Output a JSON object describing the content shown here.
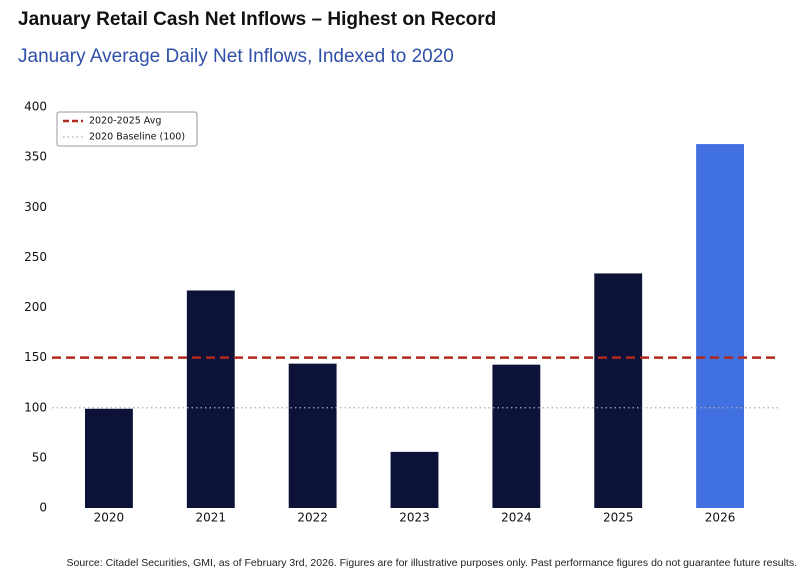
{
  "chart_data": {
    "type": "bar",
    "title": "January Retail Cash Net Inflows – Highest on Record",
    "subtitle": "January Average Daily Net Inflows, Indexed to 2020",
    "categories": [
      "2020",
      "2021",
      "2022",
      "2023",
      "2024",
      "2025",
      "2026"
    ],
    "values": [
      99,
      217,
      144,
      56,
      143,
      234,
      363
    ],
    "colors": [
      "#0c1238",
      "#0c1238",
      "#0c1238",
      "#0c1238",
      "#0c1238",
      "#0c1238",
      "#4170e0"
    ],
    "ylim": [
      0,
      400
    ],
    "yticks": [
      0,
      50,
      100,
      150,
      200,
      250,
      300,
      350,
      400
    ],
    "grid": false,
    "reference_lines": [
      {
        "name": "2020-2025 Avg",
        "value": 150,
        "color": "#b22a1e",
        "style": "dashed"
      },
      {
        "name": "2020 Baseline (100)",
        "value": 100,
        "color": "#aaaaaa",
        "style": "dotted"
      }
    ],
    "legend": "upper left",
    "source": "Source: Citadel Securities, GMI, as of February 3rd, 2026. Figures are for illustrative purposes only. Past performance figures do not guarantee future results."
  }
}
